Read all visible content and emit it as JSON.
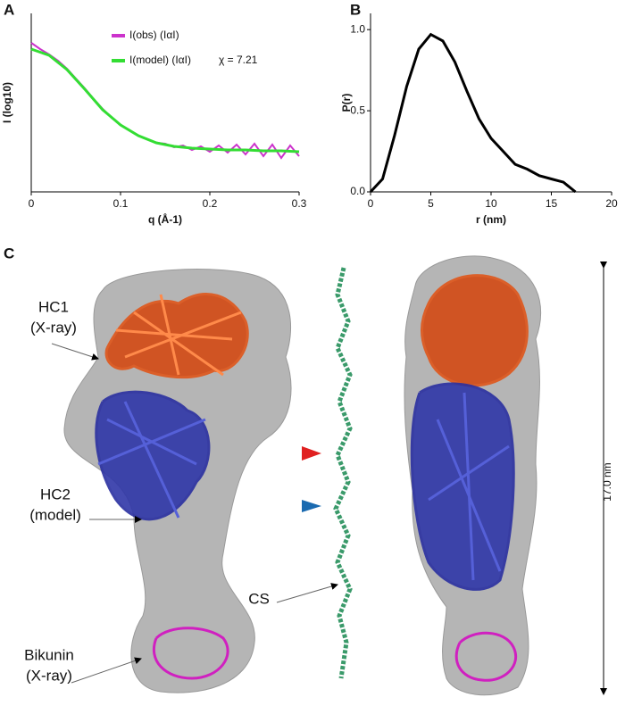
{
  "panel_labels": [
    "A",
    "B",
    "C"
  ],
  "chart_data": [
    {
      "type": "line",
      "xlabel": "q (Å-1)",
      "ylabel": "I (log10)",
      "xlim": [
        0,
        0.3
      ],
      "xticks": [
        0,
        0.1,
        0.2,
        0.3
      ],
      "ylim": [
        -2,
        0
      ],
      "yticks": [],
      "annotation": "χ = 7.21",
      "series": [
        {
          "name": "I(obs) (IαI)",
          "color": "#cc33cc",
          "x": [
            0,
            0.01,
            0.02,
            0.03,
            0.04,
            0.05,
            0.06,
            0.07,
            0.08,
            0.09,
            0.1,
            0.11,
            0.12,
            0.13,
            0.14,
            0.15,
            0.16,
            0.17,
            0.18,
            0.19,
            0.2,
            0.21,
            0.22,
            0.23,
            0.24,
            0.25,
            0.26,
            0.27,
            0.28,
            0.29,
            0.3
          ],
          "values": [
            -0.33,
            -0.4,
            -0.46,
            -0.53,
            -0.62,
            -0.73,
            -0.84,
            -0.96,
            -1.07,
            -1.17,
            -1.25,
            -1.31,
            -1.37,
            -1.41,
            -1.45,
            -1.46,
            -1.5,
            -1.48,
            -1.53,
            -1.49,
            -1.55,
            -1.48,
            -1.56,
            -1.47,
            -1.58,
            -1.46,
            -1.6,
            -1.47,
            -1.62,
            -1.48,
            -1.6
          ]
        },
        {
          "name": "I(model) (IαI)",
          "color": "#33dd33",
          "x": [
            0,
            0.02,
            0.04,
            0.06,
            0.08,
            0.1,
            0.12,
            0.14,
            0.16,
            0.18,
            0.2,
            0.22,
            0.24,
            0.26,
            0.28,
            0.3
          ],
          "values": [
            -0.4,
            -0.47,
            -0.63,
            -0.85,
            -1.08,
            -1.25,
            -1.37,
            -1.45,
            -1.49,
            -1.51,
            -1.52,
            -1.53,
            -1.53,
            -1.54,
            -1.54,
            -1.55
          ]
        }
      ]
    },
    {
      "type": "line",
      "xlabel": "r (nm)",
      "ylabel": "P(r)",
      "xlim": [
        0,
        20
      ],
      "xticks": [
        0,
        5,
        10,
        15,
        20
      ],
      "ylim": [
        0,
        1.1
      ],
      "yticks": [
        {
          "value": 0,
          "label": "0.0"
        },
        {
          "value": 0.5,
          "label": "0.5"
        },
        {
          "value": 1,
          "label": "1.0"
        }
      ],
      "series": [
        {
          "color": "#000000",
          "x": [
            0,
            1,
            2,
            3,
            4,
            5,
            6,
            7,
            8,
            9,
            10,
            11,
            12,
            13,
            14,
            15,
            16,
            17
          ],
          "values": [
            0,
            0.08,
            0.35,
            0.65,
            0.88,
            0.97,
            0.93,
            0.8,
            0.62,
            0.45,
            0.33,
            0.25,
            0.17,
            0.14,
            0.1,
            0.08,
            0.06,
            0
          ]
        }
      ]
    }
  ],
  "panel_c": {
    "hc1": [
      "HC1",
      "(X-ray)"
    ],
    "hc2": [
      "HC2",
      "(model)"
    ],
    "cs": "CS",
    "bikunin": [
      "Bikunin",
      "(X-ray)"
    ],
    "dimension": "17.0 nm"
  }
}
